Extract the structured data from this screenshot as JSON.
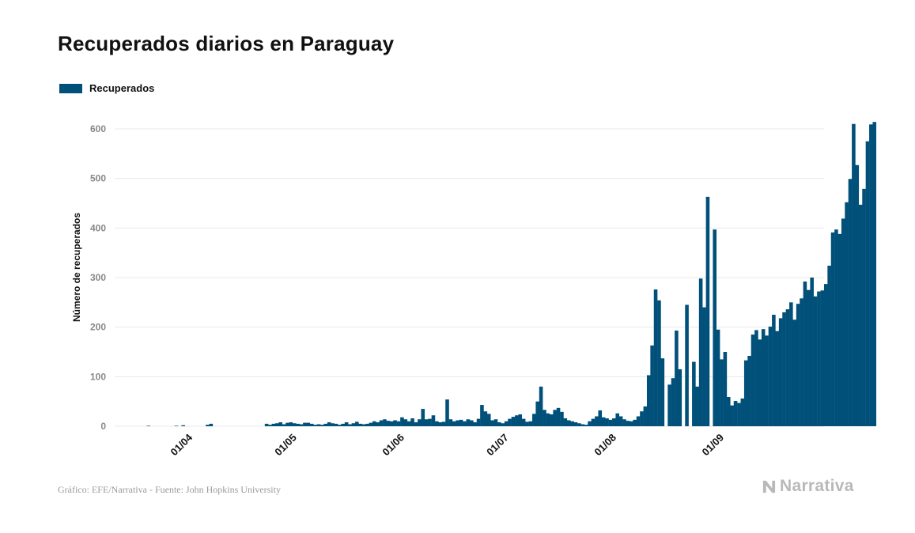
{
  "header": {
    "title": "Recuperados diarios en Paraguay"
  },
  "footer": {
    "source": "Gráfico: EFE/Narrativa - Fuente: John Hopkins University",
    "brand": "Narrativa"
  },
  "colors": {
    "bar": "#00507a",
    "grid": "#e8e8e8",
    "tick_text": "#888888",
    "axis_label": "#111111"
  },
  "icons": {
    "brand_logo": "narrativa-n-logo-icon"
  },
  "chart_data": {
    "type": "bar",
    "title": "Recuperados diarios en Paraguay",
    "ylabel": "Número de recuperados",
    "xlabel": "",
    "ylim": [
      0,
      650
    ],
    "yticks": [
      0,
      100,
      200,
      300,
      400,
      500,
      600
    ],
    "grid": true,
    "legend_position": "top-left",
    "x_start_date": "2020-03-10",
    "xticks": [
      {
        "label": "01/04",
        "date": "2020-04-01"
      },
      {
        "label": "01/05",
        "date": "2020-05-01"
      },
      {
        "label": "01/06",
        "date": "2020-06-01"
      },
      {
        "label": "01/07",
        "date": "2020-07-01"
      },
      {
        "label": "01/08",
        "date": "2020-08-01"
      },
      {
        "label": "01/09",
        "date": "2020-09-01"
      }
    ],
    "series": [
      {
        "name": "Recuperados",
        "color": "#00507a",
        "values": [
          0,
          0,
          0,
          0,
          0,
          0,
          0,
          0,
          0,
          0,
          0,
          1,
          0,
          0,
          0,
          0,
          0,
          0,
          0,
          1,
          0,
          2,
          0,
          0,
          0,
          0,
          0,
          0,
          3,
          5,
          0,
          0,
          0,
          0,
          0,
          0,
          0,
          0,
          0,
          0,
          0,
          0,
          0,
          0,
          0,
          5,
          3,
          5,
          6,
          8,
          4,
          7,
          8,
          6,
          5,
          4,
          7,
          7,
          5,
          3,
          4,
          3,
          5,
          8,
          6,
          5,
          3,
          5,
          8,
          4,
          6,
          9,
          5,
          4,
          5,
          7,
          10,
          8,
          12,
          14,
          11,
          10,
          12,
          10,
          18,
          14,
          10,
          16,
          8,
          14,
          35,
          14,
          15,
          22,
          10,
          8,
          9,
          54,
          14,
          10,
          12,
          13,
          10,
          14,
          12,
          8,
          15,
          43,
          30,
          25,
          12,
          14,
          8,
          6,
          10,
          15,
          19,
          22,
          24,
          15,
          9,
          10,
          25,
          50,
          80,
          33,
          26,
          24,
          33,
          37,
          29,
          16,
          12,
          10,
          8,
          6,
          4,
          3,
          10,
          15,
          20,
          32,
          18,
          16,
          13,
          16,
          26,
          20,
          14,
          11,
          10,
          13,
          20,
          30,
          40,
          103,
          163,
          276,
          254,
          137,
          0,
          84,
          97,
          193,
          115,
          0,
          245,
          0,
          130,
          80,
          298,
          240,
          463,
          0,
          397,
          195,
          135,
          150,
          59,
          42,
          51,
          47,
          56,
          133,
          142,
          185,
          194,
          175,
          196,
          183,
          201,
          225,
          192,
          218,
          230,
          236,
          250,
          215,
          247,
          258,
          292,
          275,
          300,
          262,
          272,
          274,
          287,
          324,
          391,
          397,
          388,
          419,
          452,
          499,
          610,
          527,
          447,
          479,
          575,
          609,
          614
        ]
      }
    ]
  }
}
